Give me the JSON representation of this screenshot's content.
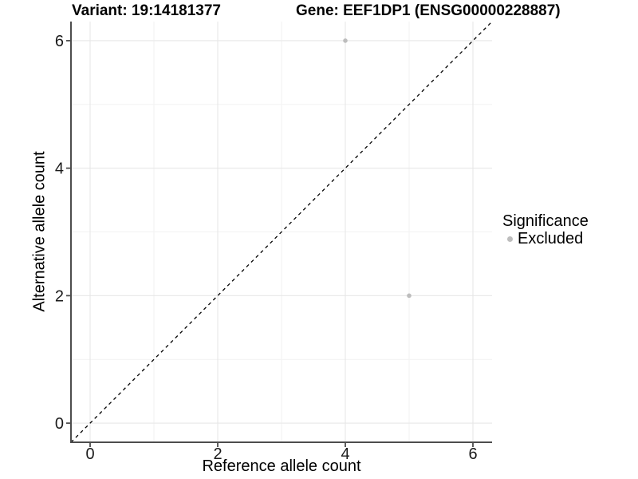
{
  "colors": {
    "background": "#ffffff",
    "axis_line": "#4d4d4d",
    "tick_mark": "#4d4d4d",
    "tick_text": "#1a1a1a",
    "grid_major": "#e7e7e7",
    "grid_minor": "#f2f2f2",
    "point": "#bdbdbd",
    "identity_line": "#000000"
  },
  "chart_data": {
    "type": "scatter",
    "title_left": "Variant: 19:14181377",
    "title_right": "Gene: EEF1DP1 (ENSG00000228887)",
    "xlabel": "Reference allele count",
    "ylabel": "Alternative allele count",
    "xlim": [
      -0.3,
      6.3
    ],
    "ylim": [
      -0.3,
      6.3
    ],
    "x_major_ticks": [
      0,
      2,
      4,
      6
    ],
    "y_major_ticks": [
      0,
      2,
      4,
      6
    ],
    "x_minor_ticks": [
      1,
      3,
      5
    ],
    "y_minor_ticks": [
      1,
      3,
      5
    ],
    "grid": "major+minor",
    "identity_line": {
      "slope": 1,
      "intercept": 0,
      "style": "dashed"
    },
    "series": [
      {
        "name": "Excluded",
        "color": "#bdbdbd",
        "points": [
          {
            "x": 4,
            "y": 6
          },
          {
            "x": 5,
            "y": 2
          }
        ]
      }
    ],
    "legend": {
      "title": "Significance",
      "position": "right",
      "entries": [
        {
          "label": "Excluded",
          "color": "#bdbdbd"
        }
      ]
    }
  }
}
